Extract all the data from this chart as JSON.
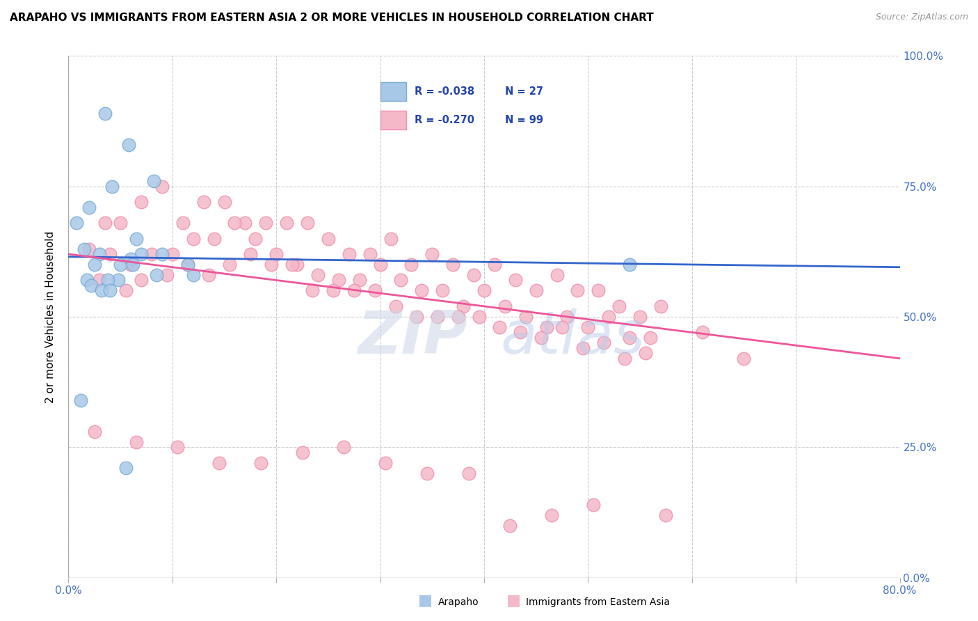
{
  "title": "ARAPAHO VS IMMIGRANTS FROM EASTERN ASIA 2 OR MORE VEHICLES IN HOUSEHOLD CORRELATION CHART",
  "source": "Source: ZipAtlas.com",
  "ylabel": "2 or more Vehicles in Household",
  "xlim": [
    0.0,
    80.0
  ],
  "ylim": [
    0.0,
    100.0
  ],
  "yticks": [
    0.0,
    25.0,
    50.0,
    75.0,
    100.0
  ],
  "xticks": [
    0.0,
    10.0,
    20.0,
    30.0,
    40.0,
    50.0,
    60.0,
    70.0,
    80.0
  ],
  "blue_R": -0.038,
  "blue_N": 27,
  "pink_R": -0.27,
  "pink_N": 99,
  "blue_color": "#a8c8e8",
  "pink_color": "#f4b8c8",
  "blue_edge_color": "#7aadd4",
  "pink_edge_color": "#f090b0",
  "blue_line_color": "#3366cc",
  "pink_line_color": "#ee5599",
  "blue_line_start_y": 61.5,
  "blue_line_end_y": 59.5,
  "pink_line_start_y": 62.0,
  "pink_line_end_y": 42.0,
  "blue_scatter_x": [
    3.5,
    5.8,
    8.2,
    2.0,
    4.2,
    1.5,
    3.0,
    5.0,
    7.0,
    6.5,
    9.0,
    11.5,
    0.8,
    1.8,
    2.5,
    4.8,
    6.0,
    3.8,
    2.2,
    6.2,
    8.5,
    12.0,
    1.2,
    54.0,
    5.5,
    3.2,
    4.0
  ],
  "blue_scatter_y": [
    89.0,
    83.0,
    76.0,
    71.0,
    75.0,
    63.0,
    62.0,
    60.0,
    62.0,
    65.0,
    62.0,
    60.0,
    68.0,
    57.0,
    60.0,
    57.0,
    61.0,
    57.0,
    56.0,
    60.0,
    58.0,
    58.0,
    34.0,
    60.0,
    21.0,
    55.0,
    55.0
  ],
  "pink_scatter_x": [
    2.0,
    3.5,
    5.0,
    7.0,
    9.0,
    11.0,
    13.0,
    15.0,
    17.0,
    19.0,
    21.0,
    23.0,
    25.0,
    27.0,
    29.0,
    31.0,
    33.0,
    35.0,
    37.0,
    39.0,
    41.0,
    43.0,
    45.0,
    47.0,
    49.0,
    51.0,
    53.0,
    55.0,
    57.0,
    4.0,
    6.0,
    8.0,
    10.0,
    12.0,
    14.0,
    16.0,
    18.0,
    20.0,
    22.0,
    24.0,
    26.0,
    28.0,
    30.0,
    32.0,
    34.0,
    36.0,
    38.0,
    40.0,
    42.0,
    44.0,
    46.0,
    48.0,
    50.0,
    52.0,
    54.0,
    56.0,
    3.0,
    7.0,
    11.5,
    15.5,
    19.5,
    23.5,
    27.5,
    31.5,
    35.5,
    39.5,
    43.5,
    47.5,
    51.5,
    55.5,
    5.5,
    9.5,
    13.5,
    17.5,
    21.5,
    25.5,
    29.5,
    33.5,
    37.5,
    41.5,
    45.5,
    49.5,
    53.5,
    61.0,
    65.0,
    2.5,
    6.5,
    10.5,
    14.5,
    18.5,
    22.5,
    26.5,
    30.5,
    34.5,
    38.5,
    42.5,
    46.5,
    50.5,
    57.5
  ],
  "pink_scatter_y": [
    63.0,
    68.0,
    68.0,
    72.0,
    75.0,
    68.0,
    72.0,
    72.0,
    68.0,
    68.0,
    68.0,
    68.0,
    65.0,
    62.0,
    62.0,
    65.0,
    60.0,
    62.0,
    60.0,
    58.0,
    60.0,
    57.0,
    55.0,
    58.0,
    55.0,
    55.0,
    52.0,
    50.0,
    52.0,
    62.0,
    60.0,
    62.0,
    62.0,
    65.0,
    65.0,
    68.0,
    65.0,
    62.0,
    60.0,
    58.0,
    57.0,
    57.0,
    60.0,
    57.0,
    55.0,
    55.0,
    52.0,
    55.0,
    52.0,
    50.0,
    48.0,
    50.0,
    48.0,
    50.0,
    46.0,
    46.0,
    57.0,
    57.0,
    60.0,
    60.0,
    60.0,
    55.0,
    55.0,
    52.0,
    50.0,
    50.0,
    47.0,
    48.0,
    45.0,
    43.0,
    55.0,
    58.0,
    58.0,
    62.0,
    60.0,
    55.0,
    55.0,
    50.0,
    50.0,
    48.0,
    46.0,
    44.0,
    42.0,
    47.0,
    42.0,
    28.0,
    26.0,
    25.0,
    22.0,
    22.0,
    24.0,
    25.0,
    22.0,
    20.0,
    20.0,
    10.0,
    12.0,
    14.0,
    12.0
  ]
}
